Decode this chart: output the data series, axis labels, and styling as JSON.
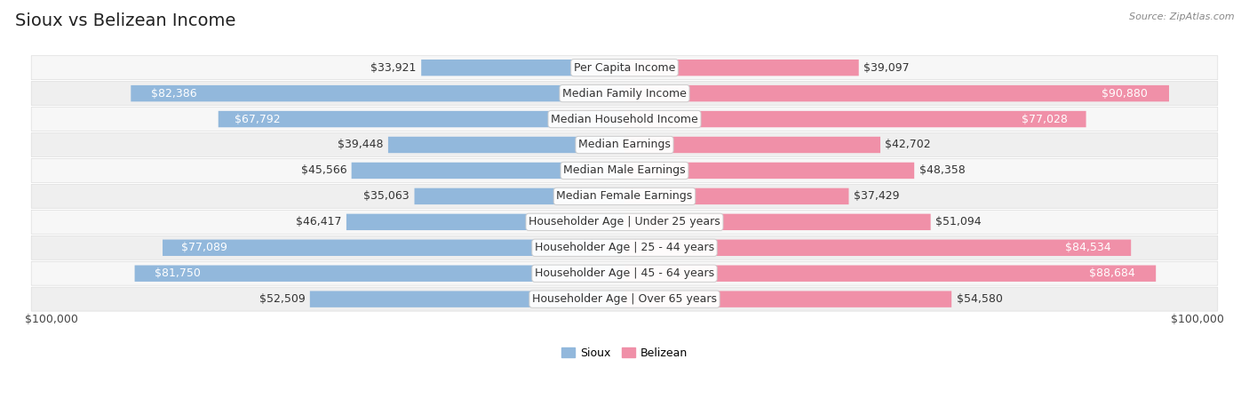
{
  "title": "Sioux vs Belizean Income",
  "source": "Source: ZipAtlas.com",
  "categories": [
    "Per Capita Income",
    "Median Family Income",
    "Median Household Income",
    "Median Earnings",
    "Median Male Earnings",
    "Median Female Earnings",
    "Householder Age | Under 25 years",
    "Householder Age | 25 - 44 years",
    "Householder Age | 45 - 64 years",
    "Householder Age | Over 65 years"
  ],
  "sioux_values": [
    33921,
    82386,
    67792,
    39448,
    45566,
    35063,
    46417,
    77089,
    81750,
    52509
  ],
  "belizean_values": [
    39097,
    90880,
    77028,
    42702,
    48358,
    37429,
    51094,
    84534,
    88684,
    54580
  ],
  "sioux_labels": [
    "$33,921",
    "$82,386",
    "$67,792",
    "$39,448",
    "$45,566",
    "$35,063",
    "$46,417",
    "$77,089",
    "$81,750",
    "$52,509"
  ],
  "belizean_labels": [
    "$39,097",
    "$90,880",
    "$77,028",
    "$42,702",
    "$48,358",
    "$37,429",
    "$51,094",
    "$84,534",
    "$88,684",
    "$54,580"
  ],
  "max_value": 100000,
  "sioux_color": "#92b8dc",
  "belizean_color": "#f090a8",
  "bg_color": "#ffffff",
  "row_light": "#f7f7f7",
  "row_dark": "#efefef",
  "row_border": "#dddddd",
  "legend_sioux": "Sioux",
  "legend_belizean": "Belizean",
  "xlabel_left": "$100,000",
  "xlabel_right": "$100,000",
  "title_fontsize": 14,
  "label_fontsize": 9,
  "category_fontsize": 9,
  "source_fontsize": 8,
  "legend_fontsize": 9,
  "threshold_white": 55000
}
